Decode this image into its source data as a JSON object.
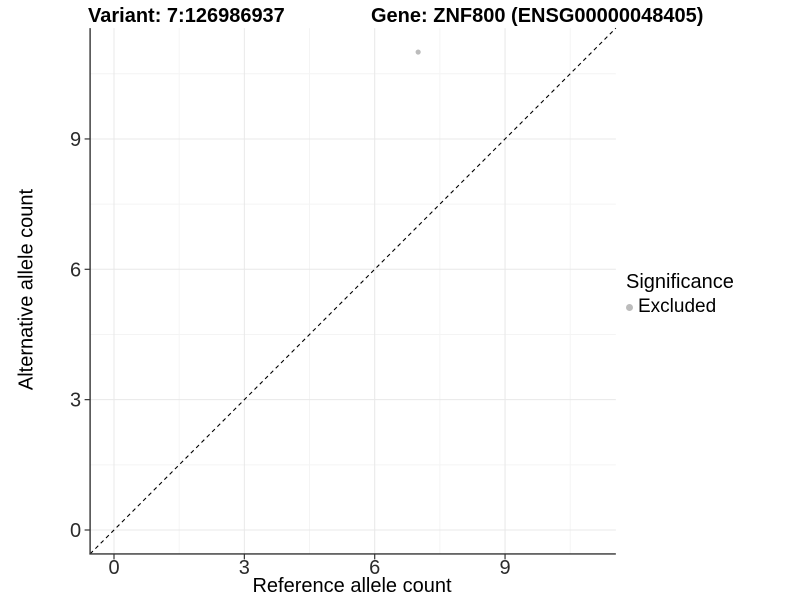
{
  "titles": {
    "variant": "Variant: 7:126986937",
    "gene": "Gene: ZNF800 (ENSG00000048405)"
  },
  "axes": {
    "x_label": "Reference allele count",
    "y_label": "Alternative allele count"
  },
  "legend": {
    "title": "Significance",
    "position": "right",
    "items": [
      {
        "label": "Excluded",
        "color": "#bcbcbc"
      }
    ]
  },
  "chart_data": {
    "type": "scatter",
    "title": "Variant: 7:126986937    Gene: ZNF800 (ENSG00000048405)",
    "xlabel": "Reference allele count",
    "ylabel": "Alternative allele count",
    "xticks": [
      0,
      3,
      6,
      9
    ],
    "yticks": [
      0,
      3,
      6,
      9
    ],
    "xlim": [
      -0.55,
      11.55
    ],
    "ylim": [
      -0.55,
      11.55
    ],
    "grid": true,
    "grid_major_color": "#e8e8e8",
    "grid_minor_color": "#f4f4f4",
    "axis_line_color": "#333333",
    "tick_label_color": "#2b2b2b",
    "legend_position": "right",
    "series": [
      {
        "name": "Excluded",
        "color": "#bcbcbc",
        "points": [
          {
            "x": 7,
            "y": 11
          }
        ]
      }
    ],
    "reference_line": {
      "type": "identity",
      "equation": "y = x",
      "style": "dashed",
      "color": "#000000"
    }
  }
}
